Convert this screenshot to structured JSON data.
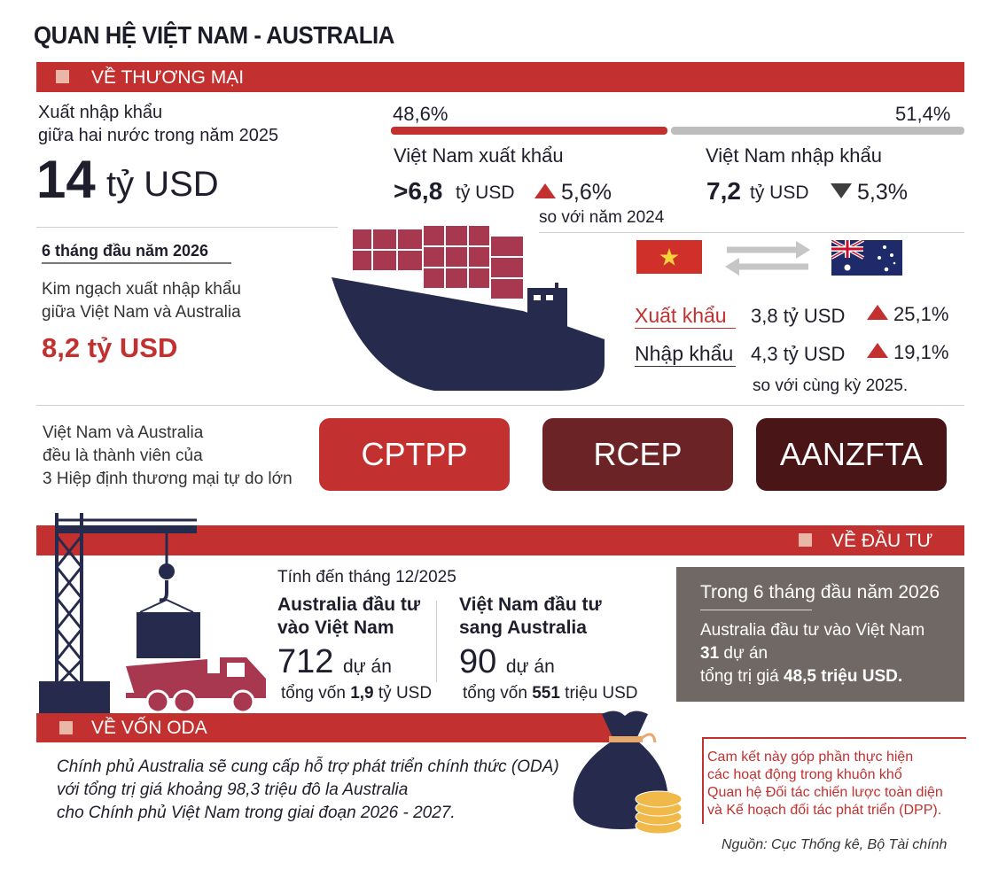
{
  "title": "QUAN HỆ VIỆT NAM - AUSTRALIA",
  "trade": {
    "section_label": "VỀ THƯƠNG MẠI",
    "total_caption_1": "Xuất nhập khẩu",
    "total_caption_2": "giữa hai nước trong năm 2025",
    "total_number": "14",
    "total_unit": "tỷ USD",
    "share_export": "48,6%",
    "share_import": "51,4%",
    "share_export_fraction": 0.486,
    "export_label": "Việt Nam xuất khẩu",
    "export_value": ">6,8",
    "export_unit": "tỷ USD",
    "export_change": "5,6%",
    "compare_note": "so với năm 2024",
    "import_label": "Việt Nam nhập khẩu",
    "import_value": "7,2",
    "import_unit": "tỷ USD",
    "import_change": "5,3%",
    "half_year_heading": "6 tháng đầu năm 2026",
    "half_caption_1": "Kim ngạch xuất nhập khẩu",
    "half_caption_2": "giữa Việt Nam và Australia",
    "half_value": "8,2 tỷ USD",
    "half_export_label": "Xuất khẩu",
    "half_export_value": "3,8 tỷ USD",
    "half_export_change": "25,1%",
    "half_import_label": "Nhập khẩu",
    "half_import_value": "4,3 tỷ USD",
    "half_import_change": "19,1%",
    "half_compare_note": "so với cùng kỳ 2025.",
    "fta_caption_1": "Việt Nam và Australia",
    "fta_caption_2": "đều là thành viên của",
    "fta_caption_3": "3 Hiệp định thương mại tự do lớn",
    "fta": [
      "CPTPP",
      "RCEP",
      "AANZFTA"
    ],
    "colors": {
      "accent": "#c2302f",
      "ship": "#262b4d",
      "cargo": "#a8384f",
      "fta2": "#6b2325",
      "fta3": "#4a1517"
    }
  },
  "investment": {
    "section_label": "VỀ ĐẦU TƯ",
    "as_of": "Tính đến tháng 12/2025",
    "au_to_vn_1": "Australia đầu tư",
    "au_to_vn_2": "vào Việt Nam",
    "au_projects": "712",
    "au_projects_unit": "dự án",
    "au_capital_prefix": "tổng vốn",
    "au_capital_value": "1,9",
    "au_capital_unit": "tỷ USD",
    "vn_to_au_1": "Việt Nam đầu tư",
    "vn_to_au_2": "sang Australia",
    "vn_projects": "90",
    "vn_projects_unit": "dự án",
    "vn_capital_prefix": "tổng vốn",
    "vn_capital_value": "551",
    "vn_capital_unit": "triệu USD",
    "box_heading": "Trong 6 tháng đầu năm 2026",
    "box_line1": "Australia đầu tư vào Việt Nam",
    "box_projects": "31",
    "box_projects_unit": "dự án",
    "box_value_prefix": "tổng trị giá",
    "box_value": "48,5 triệu USD."
  },
  "oda": {
    "section_label": "VỀ VỐN ODA",
    "line1": "Chính phủ Australia sẽ cung cấp hỗ trợ phát triển chính thức (ODA)",
    "line2": "với tổng trị giá khoảng 98,3 triệu đô la Australia",
    "line3": "cho Chính phủ Việt Nam trong giai đoạn 2026 - 2027.",
    "note1": "Cam kết này góp phần thực hiện",
    "note2": "các hoạt động trong khuôn khổ",
    "note3": "Quan hệ Đối tác chiến lược toàn diện",
    "note4": "và Kế hoạch đối tác phát triển (DPP)."
  },
  "source": "Nguồn: Cục Thống kê, Bộ Tài chính"
}
